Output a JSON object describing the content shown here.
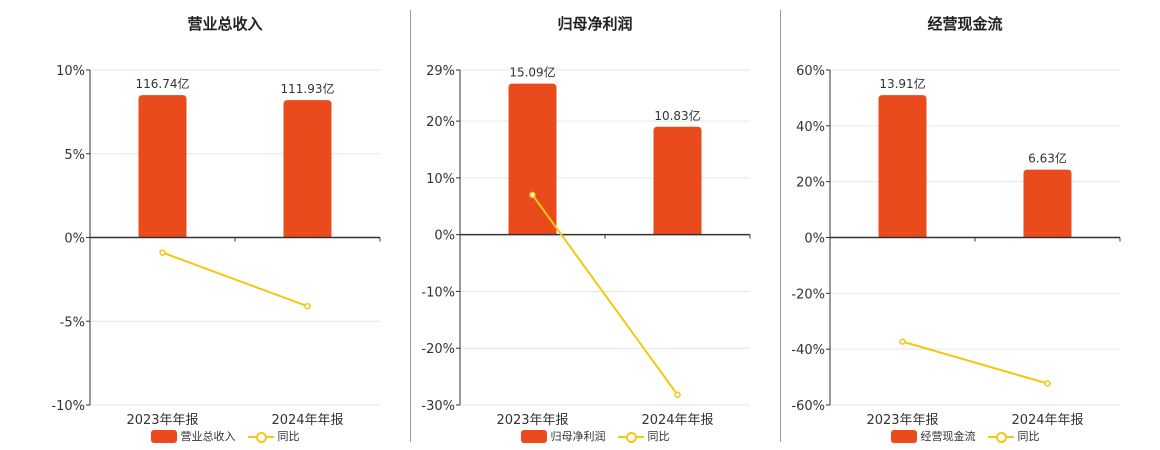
{
  "colors": {
    "bar": "#e94b1c",
    "line": "#f2c811",
    "grid": "#e6e6e6",
    "axis": "#333333",
    "text": "#333333"
  },
  "chart_data": [
    {
      "type": "bar",
      "title": "营业总收入",
      "categories": [
        "2023年年报",
        "2024年年报"
      ],
      "bar_labels": [
        "116.74亿",
        "111.93亿"
      ],
      "bar_values": [
        8.5,
        8.2
      ],
      "yoy": [
        -0.9,
        -4.1
      ],
      "ylim": [
        -10,
        10
      ],
      "yticks": [
        10,
        5,
        0,
        -5,
        -10
      ],
      "ytick_labels": [
        "10%",
        "5%",
        "0%",
        "-5%",
        "-10%"
      ],
      "legend": [
        "营业总收入",
        "同比"
      ],
      "grid": true
    },
    {
      "type": "bar",
      "title": "归母净利润",
      "categories": [
        "2023年年报",
        "2024年年报"
      ],
      "bar_labels": [
        "15.09亿",
        "10.83亿"
      ],
      "bar_values": [
        26.6,
        19.0
      ],
      "yoy": [
        7.0,
        -28.2
      ],
      "ylim": [
        -30,
        29
      ],
      "yticks": [
        29,
        20,
        10,
        0,
        -10,
        -20,
        -30
      ],
      "ytick_labels": [
        "29%",
        "20%",
        "10%",
        "0%",
        "-10%",
        "-20%",
        "-30%"
      ],
      "legend": [
        "归母净利润",
        "同比"
      ],
      "grid": true
    },
    {
      "type": "bar",
      "title": "经营现金流",
      "categories": [
        "2023年年报",
        "2024年年报"
      ],
      "bar_labels": [
        "13.91亿",
        "6.63亿"
      ],
      "bar_values": [
        51.0,
        24.3
      ],
      "yoy": [
        -37.3,
        -52.3
      ],
      "ylim": [
        -60,
        60
      ],
      "yticks": [
        60,
        40,
        20,
        0,
        -20,
        -40,
        -60
      ],
      "ytick_labels": [
        "60%",
        "40%",
        "20%",
        "0%",
        "-20%",
        "-40%",
        "-60%"
      ],
      "legend": [
        "经营现金流",
        "同比"
      ],
      "grid": true
    }
  ]
}
